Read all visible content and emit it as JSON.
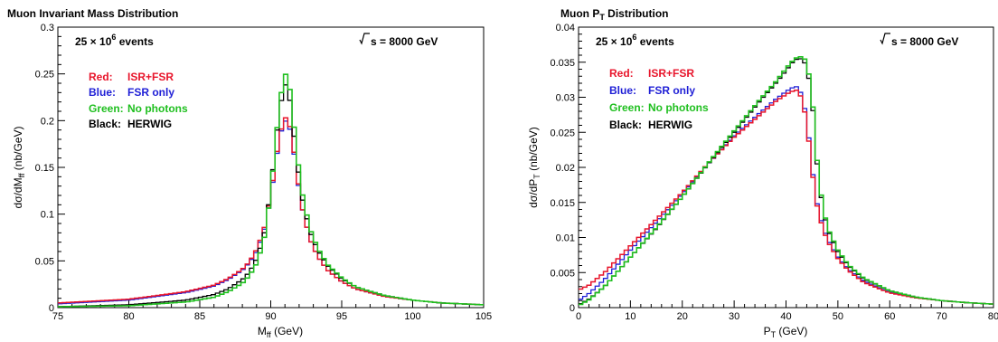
{
  "colors": {
    "isr_fsr": "#e8152b",
    "fsr_only": "#1f1fd6",
    "no_photons": "#1fbf1f",
    "herwig": "#000000"
  },
  "chart_data": [
    {
      "type": "line",
      "title": "Muon Invariant Mass Distribution",
      "xlabel": "M_ff (GeV)",
      "ylabel": "dσ/dM_ff (nb/GeV)",
      "xlim": [
        75,
        105
      ],
      "ylim": [
        0,
        0.3
      ],
      "x_ticks": [
        75,
        80,
        85,
        90,
        95,
        100,
        105
      ],
      "x_tick_labels": [
        "75",
        "80",
        "85",
        "90",
        "95",
        "100",
        "105"
      ],
      "y_ticks": [
        0,
        0.05,
        0.1,
        0.15,
        0.2,
        0.25,
        0.3
      ],
      "y_tick_labels": [
        "0",
        "0.05",
        "0.1",
        "0.15",
        "0.2",
        "0.25",
        "0.3"
      ],
      "grid": false,
      "annotations": {
        "events": "25 × 10",
        "events_exp": "6",
        "events_suffix": " events",
        "energy": "s = 8000 GeV"
      },
      "legend": [
        {
          "key": "Red:",
          "text": "ISR+FSR",
          "color": "#e8152b"
        },
        {
          "key": "Blue:",
          "text": "FSR only",
          "color": "#1f1fd6"
        },
        {
          "key": "Green:",
          "text": "No photons",
          "color": "#1fbf1f"
        },
        {
          "key": "Black:",
          "text": "HERWIG",
          "color": "#000000"
        }
      ],
      "series": [
        {
          "id": "fsr_only",
          "color": "#1f1fd6",
          "width": 1.3,
          "x": [
            75,
            80,
            84,
            86,
            87,
            88,
            88.5,
            89,
            89.5,
            90,
            90.3,
            90.6,
            90.9,
            91.1,
            91.3,
            91.6,
            91.9,
            92.3,
            92.8,
            93.3,
            94,
            95,
            96,
            98,
            100,
            102,
            105
          ],
          "y": [
            0.004,
            0.008,
            0.016,
            0.023,
            0.03,
            0.04,
            0.048,
            0.06,
            0.08,
            0.118,
            0.15,
            0.18,
            0.198,
            0.2,
            0.195,
            0.17,
            0.135,
            0.1,
            0.072,
            0.055,
            0.04,
            0.028,
            0.02,
            0.012,
            0.008,
            0.005,
            0.003
          ]
        },
        {
          "id": "isr_fsr",
          "color": "#e8152b",
          "width": 1.5,
          "x": [
            75,
            80,
            84,
            86,
            87,
            88,
            88.5,
            89,
            89.5,
            90,
            90.3,
            90.6,
            90.9,
            91.1,
            91.3,
            91.6,
            91.9,
            92.3,
            92.8,
            93.3,
            94,
            95,
            96,
            98,
            100,
            102,
            105
          ],
          "y": [
            0.005,
            0.009,
            0.017,
            0.024,
            0.031,
            0.041,
            0.049,
            0.062,
            0.082,
            0.12,
            0.152,
            0.182,
            0.2,
            0.204,
            0.198,
            0.172,
            0.137,
            0.1,
            0.072,
            0.055,
            0.04,
            0.028,
            0.02,
            0.012,
            0.008,
            0.005,
            0.003
          ]
        },
        {
          "id": "herwig",
          "color": "#000000",
          "width": 1.3,
          "x": [
            75,
            80,
            84,
            86,
            87,
            88,
            88.5,
            89,
            89.5,
            90,
            90.3,
            90.6,
            90.9,
            91.1,
            91.3,
            91.6,
            91.9,
            92.3,
            92.8,
            93.3,
            94,
            95,
            96,
            98,
            100,
            102,
            105
          ],
          "y": [
            0.001,
            0.003,
            0.008,
            0.014,
            0.02,
            0.03,
            0.038,
            0.052,
            0.075,
            0.125,
            0.17,
            0.21,
            0.233,
            0.24,
            0.228,
            0.19,
            0.15,
            0.11,
            0.08,
            0.062,
            0.045,
            0.031,
            0.022,
            0.013,
            0.008,
            0.005,
            0.003
          ]
        },
        {
          "id": "no_photons",
          "color": "#1fbf1f",
          "width": 1.6,
          "x": [
            75,
            80,
            84,
            86,
            87,
            88,
            88.5,
            89,
            89.5,
            90,
            90.3,
            90.6,
            90.9,
            91.1,
            91.3,
            91.6,
            91.9,
            92.3,
            92.8,
            93.3,
            94,
            95,
            96,
            98,
            100,
            102,
            105
          ],
          "y": [
            0.001,
            0.002,
            0.006,
            0.011,
            0.017,
            0.026,
            0.034,
            0.047,
            0.07,
            0.122,
            0.17,
            0.215,
            0.245,
            0.251,
            0.24,
            0.2,
            0.158,
            0.115,
            0.083,
            0.064,
            0.046,
            0.032,
            0.022,
            0.013,
            0.008,
            0.005,
            0.003
          ]
        }
      ]
    },
    {
      "type": "line",
      "title": "Muon P_T Distribution",
      "xlabel": "P_T (GeV)",
      "ylabel": "dσ/dP_T (nb/GeV)",
      "xlim": [
        0,
        80
      ],
      "ylim": [
        0,
        0.04
      ],
      "x_ticks": [
        0,
        10,
        20,
        30,
        40,
        50,
        60,
        70,
        80
      ],
      "x_tick_labels": [
        "0",
        "10",
        "20",
        "30",
        "40",
        "50",
        "60",
        "70",
        "80"
      ],
      "y_ticks": [
        0,
        0.005,
        0.01,
        0.015,
        0.02,
        0.025,
        0.03,
        0.035,
        0.04
      ],
      "y_tick_labels": [
        "0",
        "0.005",
        "0.01",
        "0.015",
        "0.02",
        "0.025",
        "0.03",
        "0.035",
        "0.04"
      ],
      "grid": false,
      "annotations": {
        "events": "25 × 10",
        "events_exp": "6",
        "events_suffix": " events",
        "energy": "s = 8000 GeV"
      },
      "legend": [
        {
          "key": "Red:",
          "text": "ISR+FSR",
          "color": "#e8152b"
        },
        {
          "key": "Blue:",
          "text": "FSR only",
          "color": "#1f1fd6"
        },
        {
          "key": "Green:",
          "text": "No photons",
          "color": "#1fbf1f"
        },
        {
          "key": "Black:",
          "text": "HERWIG",
          "color": "#000000"
        }
      ],
      "series": [
        {
          "id": "fsr_only",
          "color": "#1f1fd6",
          "width": 1.3,
          "x": [
            0,
            2,
            5,
            10,
            15,
            20,
            25,
            30,
            35,
            38,
            40,
            41,
            42,
            43,
            44,
            45,
            46,
            47,
            48,
            50,
            52,
            55,
            60,
            65,
            70,
            75,
            80
          ],
          "y": [
            0.001,
            0.002,
            0.004,
            0.0082,
            0.0122,
            0.0162,
            0.0205,
            0.0245,
            0.0278,
            0.0297,
            0.0308,
            0.0313,
            0.0315,
            0.0305,
            0.027,
            0.02,
            0.0148,
            0.0118,
            0.0098,
            0.0072,
            0.0055,
            0.0038,
            0.0022,
            0.0014,
            0.001,
            0.0007,
            0.0005
          ]
        },
        {
          "id": "isr_fsr",
          "color": "#e8152b",
          "width": 1.5,
          "x": [
            0,
            2,
            5,
            10,
            15,
            20,
            25,
            30,
            35,
            38,
            40,
            41,
            42,
            43,
            44,
            45,
            46,
            47,
            48,
            50,
            52,
            55,
            60,
            65,
            70,
            75,
            80
          ],
          "y": [
            0.0025,
            0.0032,
            0.005,
            0.0088,
            0.0126,
            0.0164,
            0.0206,
            0.0243,
            0.0275,
            0.0294,
            0.0304,
            0.0308,
            0.031,
            0.03,
            0.0265,
            0.0196,
            0.0145,
            0.0115,
            0.0095,
            0.007,
            0.0053,
            0.0036,
            0.0021,
            0.0014,
            0.001,
            0.0007,
            0.0005
          ]
        },
        {
          "id": "herwig",
          "color": "#000000",
          "width": 1.3,
          "x": [
            0,
            2,
            5,
            10,
            15,
            20,
            25,
            30,
            35,
            38,
            40,
            41,
            42,
            43,
            44,
            45,
            46,
            47,
            48,
            50,
            52,
            55,
            60,
            65,
            70,
            75,
            80
          ],
          "y": [
            0.0004,
            0.0012,
            0.003,
            0.0072,
            0.0113,
            0.0158,
            0.0205,
            0.025,
            0.0295,
            0.032,
            0.0338,
            0.0348,
            0.0354,
            0.0355,
            0.0345,
            0.03,
            0.0205,
            0.0145,
            0.0112,
            0.008,
            0.006,
            0.0041,
            0.0024,
            0.0015,
            0.001,
            0.0007,
            0.0005
          ]
        },
        {
          "id": "no_photons",
          "color": "#1fbf1f",
          "width": 1.6,
          "x": [
            0,
            2,
            5,
            10,
            15,
            20,
            25,
            30,
            35,
            38,
            40,
            41,
            42,
            43,
            44,
            45,
            46,
            47,
            48,
            50,
            52,
            55,
            60,
            65,
            70,
            75,
            80
          ],
          "y": [
            0.0003,
            0.0011,
            0.003,
            0.0072,
            0.0114,
            0.0158,
            0.0206,
            0.0252,
            0.0297,
            0.0322,
            0.0341,
            0.035,
            0.0356,
            0.0358,
            0.0352,
            0.0305,
            0.021,
            0.0148,
            0.0114,
            0.0082,
            0.0061,
            0.0042,
            0.0024,
            0.0015,
            0.001,
            0.0007,
            0.0005
          ]
        }
      ]
    }
  ]
}
